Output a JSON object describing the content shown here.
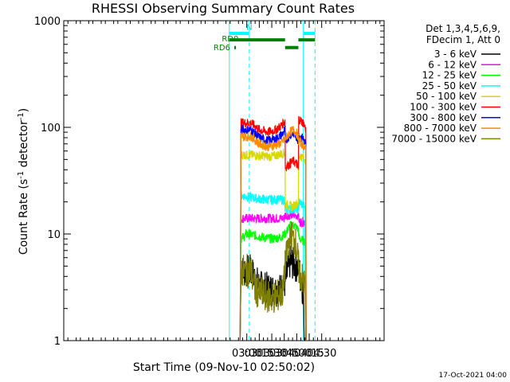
{
  "chart_data": {
    "type": "line",
    "title": "RHESSI Observing Summary Count Rates",
    "xlabel": "Start Time (09-Nov-10 02:50:02)",
    "ylabel_main": "Count Rate (s",
    "ylabel_sup1": "-1",
    "ylabel_mid": " detector",
    "ylabel_sup2": "-1",
    "ylabel_end": ")",
    "y_scale": "log",
    "ylim": [
      1,
      1000
    ],
    "xlim_minutes": [
      -40,
      345
    ],
    "x_ticks": [
      {
        "m": 180,
        "label": "03:00"
      },
      {
        "m": 195,
        "label": "03:15"
      },
      {
        "m": 210,
        "label": "03:30"
      },
      {
        "m": 225,
        "label": "03:45"
      },
      {
        "m": 240,
        "label": "04:00"
      },
      {
        "m": 255,
        "label": "04:15"
      },
      {
        "m": 270,
        "label": "04:30"
      }
    ],
    "y_ticks": [
      {
        "v": 1,
        "label": "1"
      },
      {
        "v": 10,
        "label": "10"
      },
      {
        "v": 100,
        "label": "100"
      },
      {
        "v": 1000,
        "label": "1000"
      }
    ],
    "legend_header": [
      "Det 1,3,4,5,6,9,",
      "FDecim 1, Att 0"
    ],
    "series": [
      {
        "name": "3 - 6 keV",
        "color": "#000000",
        "points": [
          [
            172,
            1
          ],
          [
            173,
            4.5
          ],
          [
            185,
            4.5
          ],
          [
            195,
            3.2
          ],
          [
            210,
            3.0
          ],
          [
            220,
            3.0
          ],
          [
            226,
            3.5
          ],
          [
            232,
            5.5
          ],
          [
            240,
            5.0
          ],
          [
            243,
            4.5
          ],
          [
            248,
            2.8
          ],
          [
            249,
            1
          ]
        ]
      },
      {
        "name": "6 - 12 keV",
        "color": "#ff00ff",
        "points": [
          [
            172,
            1
          ],
          [
            173,
            14
          ],
          [
            185,
            14
          ],
          [
            200,
            14
          ],
          [
            215,
            14
          ],
          [
            225,
            14
          ],
          [
            226,
            15
          ],
          [
            235,
            15
          ],
          [
            242,
            15
          ],
          [
            243,
            13
          ],
          [
            250,
            13
          ],
          [
            251,
            1
          ]
        ]
      },
      {
        "name": "12 - 25 keV",
        "color": "#00ff00",
        "points": [
          [
            172,
            1
          ],
          [
            173,
            9
          ],
          [
            180,
            10
          ],
          [
            195,
            9.5
          ],
          [
            210,
            9
          ],
          [
            220,
            9.3
          ],
          [
            226,
            10
          ],
          [
            232,
            12
          ],
          [
            237,
            12
          ],
          [
            242,
            11
          ],
          [
            243,
            9
          ],
          [
            250,
            8.5
          ],
          [
            251,
            1
          ]
        ]
      },
      {
        "name": "25 - 50 keV",
        "color": "#00ffff",
        "points": [
          [
            172,
            1
          ],
          [
            173,
            23
          ],
          [
            185,
            22
          ],
          [
            200,
            21
          ],
          [
            215,
            21
          ],
          [
            225,
            21
          ],
          [
            226,
            17
          ],
          [
            235,
            17
          ],
          [
            242,
            17
          ],
          [
            243,
            20
          ],
          [
            250,
            18
          ],
          [
            251,
            1
          ]
        ]
      },
      {
        "name": "50 - 100 keV",
        "color": "#d8d800",
        "points": [
          [
            172,
            1
          ],
          [
            173,
            55
          ],
          [
            185,
            55
          ],
          [
            200,
            54
          ],
          [
            210,
            53
          ],
          [
            220,
            56
          ],
          [
            226,
            58
          ],
          [
            226.3,
            19
          ],
          [
            235,
            18
          ],
          [
            242,
            20
          ],
          [
            242.3,
            55
          ],
          [
            248,
            52
          ],
          [
            251,
            50
          ],
          [
            251.2,
            1
          ]
        ]
      },
      {
        "name": "100 - 300 keV",
        "color": "#ff0000",
        "points": [
          [
            172,
            1
          ],
          [
            173,
            110
          ],
          [
            185,
            110
          ],
          [
            195,
            95
          ],
          [
            205,
            90
          ],
          [
            215,
            95
          ],
          [
            222,
            105
          ],
          [
            226,
            115
          ],
          [
            226.3,
            42
          ],
          [
            232,
            46
          ],
          [
            236,
            48
          ],
          [
            240,
            45
          ],
          [
            242,
            40
          ],
          [
            242.3,
            120
          ],
          [
            248,
            110
          ],
          [
            251,
            95
          ],
          [
            251.2,
            1
          ]
        ]
      },
      {
        "name": "300 - 800 keV",
        "color": "#0000ff",
        "points": [
          [
            172,
            1
          ],
          [
            173,
            95
          ],
          [
            185,
            95
          ],
          [
            195,
            80
          ],
          [
            205,
            75
          ],
          [
            215,
            78
          ],
          [
            222,
            85
          ],
          [
            226,
            95
          ],
          [
            226.3,
            75
          ],
          [
            232,
            85
          ],
          [
            236,
            88
          ],
          [
            240,
            80
          ],
          [
            242,
            75
          ],
          [
            242.3,
            85
          ],
          [
            248,
            78
          ],
          [
            251,
            70
          ],
          [
            251.2,
            1
          ]
        ]
      },
      {
        "name": "800 - 7000 keV",
        "color": "#ff8c00",
        "points": [
          [
            172,
            1
          ],
          [
            173,
            82
          ],
          [
            185,
            82
          ],
          [
            195,
            70
          ],
          [
            205,
            66
          ],
          [
            215,
            68
          ],
          [
            222,
            72
          ],
          [
            226,
            78
          ],
          [
            226.3,
            78
          ],
          [
            232,
            90
          ],
          [
            236,
            95
          ],
          [
            240,
            88
          ],
          [
            242,
            80
          ],
          [
            242.3,
            75
          ],
          [
            248,
            68
          ],
          [
            251,
            62
          ],
          [
            251.2,
            1
          ]
        ]
      },
      {
        "name": "7000 - 15000 keV",
        "color": "#7f7f00",
        "points": [
          [
            172,
            1
          ],
          [
            173,
            4.5
          ],
          [
            185,
            4.5
          ],
          [
            190,
            3.0
          ],
          [
            200,
            2.7
          ],
          [
            210,
            2.5
          ],
          [
            220,
            2.7
          ],
          [
            224,
            3.0
          ],
          [
            226,
            5.0
          ],
          [
            230,
            8.0
          ],
          [
            234,
            9.5
          ],
          [
            238,
            8.5
          ],
          [
            240,
            7.0
          ],
          [
            242,
            5.0
          ],
          [
            243,
            4.5
          ],
          [
            248,
            3.5
          ],
          [
            250,
            3.2
          ],
          [
            251,
            1
          ]
        ]
      }
    ],
    "annotations": [
      {
        "text": "N",
        "m": 183,
        "v": 820,
        "color": "#00cccc"
      },
      {
        "text": "RD0",
        "m": 160,
        "v": 640,
        "color": "#007f00"
      },
      {
        "text": "RD6",
        "m": 150,
        "v": 530,
        "color": "#007f00"
      }
    ],
    "flag_bars": [
      {
        "color": "#00ffff",
        "v": 760,
        "ranges": [
          [
            159,
            183
          ],
          [
            248,
            262
          ]
        ]
      },
      {
        "color": "#007f00",
        "v": 660,
        "ranges": [
          [
            159,
            226
          ],
          [
            242,
            262
          ]
        ]
      },
      {
        "color": "#007f00",
        "v": 560,
        "ranges": [
          [
            226,
            242
          ],
          [
            165,
            167
          ]
        ]
      }
    ],
    "vlines": [
      {
        "m": 159,
        "color": "#00ffff",
        "dash": false
      },
      {
        "m": 183,
        "color": "#00ffff",
        "dash": true
      },
      {
        "m": 248,
        "color": "#00ffff",
        "dash": false
      },
      {
        "m": 262,
        "color": "#00ffff",
        "dash": true
      }
    ],
    "timestamp": "17-Oct-2021 04:00",
    "grid": false
  }
}
